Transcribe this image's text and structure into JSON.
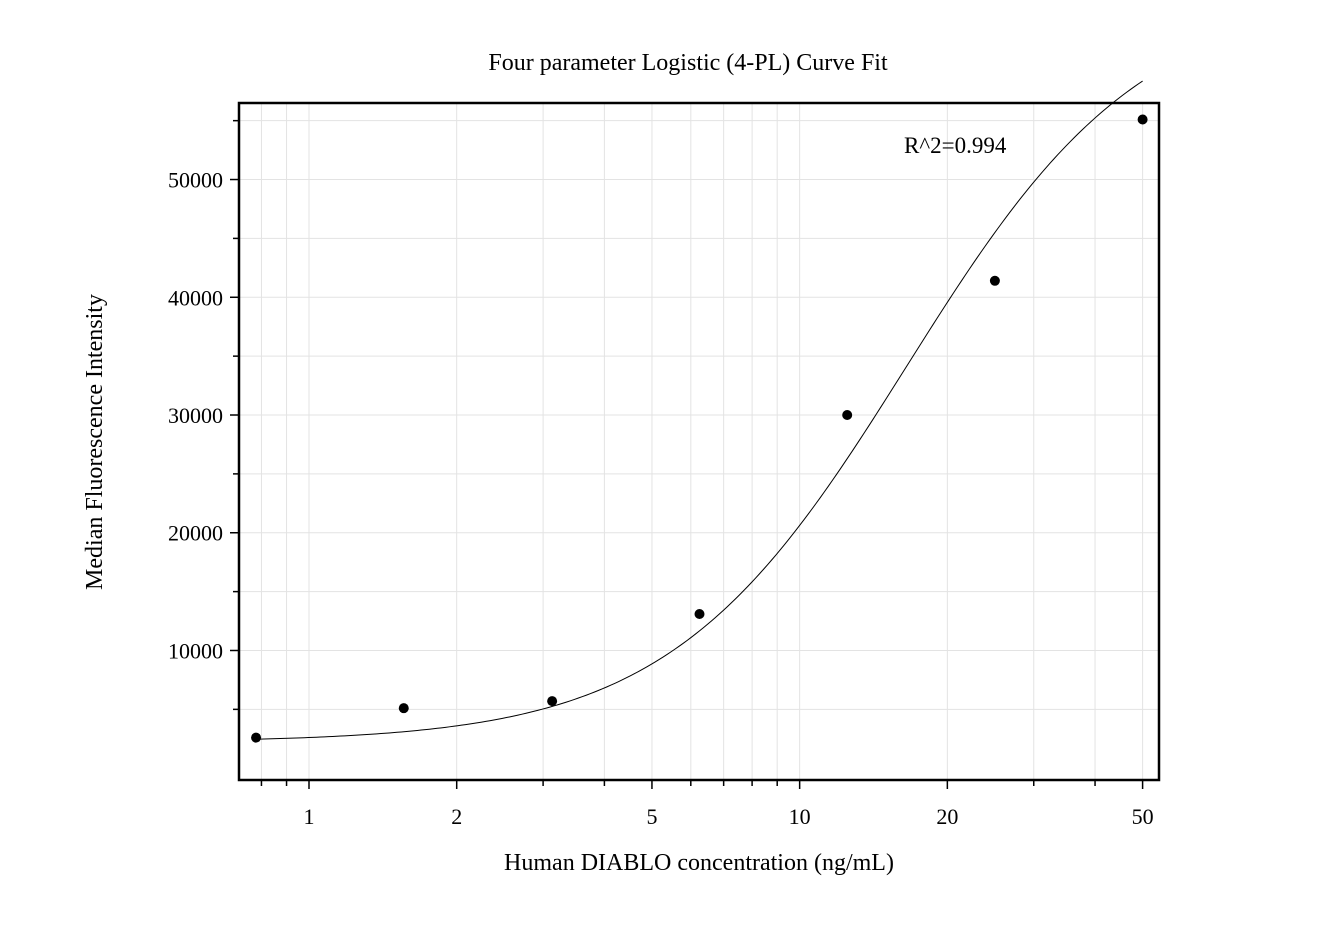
{
  "chart_data": {
    "type": "scatter",
    "title": "Four parameter Logistic (4-PL) Curve Fit",
    "xlabel": "Human DIABLO concentration (ng/mL)",
    "ylabel": "Median Fluorescence Intensity",
    "x_scale": "log",
    "xlim": [
      0.72,
      54
    ],
    "ylim": [
      -1000,
      56500
    ],
    "x_ticks": [
      {
        "value": 1,
        "label": "1"
      },
      {
        "value": 2,
        "label": "2"
      },
      {
        "value": 5,
        "label": "5"
      },
      {
        "value": 10,
        "label": "10"
      },
      {
        "value": 20,
        "label": "20"
      },
      {
        "value": 50,
        "label": "50"
      }
    ],
    "y_ticks": [
      {
        "value": 10000,
        "label": "10000"
      },
      {
        "value": 20000,
        "label": "20000"
      },
      {
        "value": 30000,
        "label": "30000"
      },
      {
        "value": 40000,
        "label": "40000"
      },
      {
        "value": 50000,
        "label": "50000"
      }
    ],
    "grid": true,
    "annotation": "R^2=0.994",
    "points": [
      {
        "x": 0.78,
        "y": 2600
      },
      {
        "x": 1.56,
        "y": 5100
      },
      {
        "x": 3.13,
        "y": 5700
      },
      {
        "x": 6.25,
        "y": 13100
      },
      {
        "x": 12.5,
        "y": 30000
      },
      {
        "x": 25,
        "y": 41400
      },
      {
        "x": 50,
        "y": 55100
      }
    ],
    "fit": {
      "model": "4PL",
      "bottom": 2200,
      "top": 66000,
      "ec50": 16.5,
      "hill": 1.8
    }
  }
}
